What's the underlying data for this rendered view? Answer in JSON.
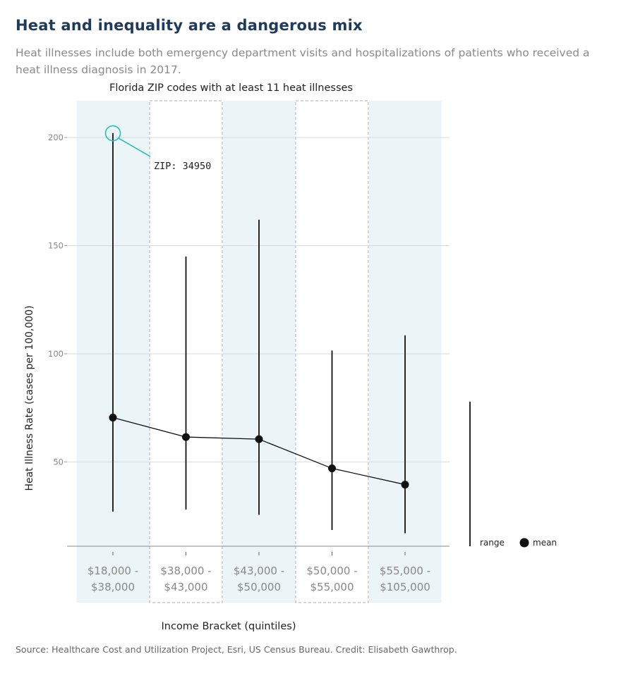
{
  "header": {
    "title": "Heat and inequality are a dangerous mix",
    "subtitle": "Heat illnesses include both emergency department visits and hospitalizations of patients who received a heat illness diagnosis in 2017."
  },
  "footer": {
    "source": "Source: Healthcare Cost and Utilization Project, Esri, US Census Bureau. Credit: Elisabeth Gawthrop."
  },
  "chart_data": {
    "type": "line",
    "title": "Florida ZIP codes with at least 11 heat illnesses",
    "xlabel": "Income Bracket (quintiles)",
    "ylabel": "Heat Illness Rate (cases per 100,000)",
    "ylim": [
      11,
      217
    ],
    "yticks": [
      200,
      150,
      100,
      50
    ],
    "grid": true,
    "categories": [
      [
        "$18,000 -",
        "$38,000"
      ],
      [
        "$38,000 -",
        "$43,000"
      ],
      [
        "$43,000 -",
        "$50,000"
      ],
      [
        "$50,000 -",
        "$55,000"
      ],
      [
        "$55,000 -",
        "$105,000"
      ]
    ],
    "series": [
      {
        "name": "mean",
        "values": [
          70.5,
          61.5,
          60.5,
          47,
          39.5
        ]
      },
      {
        "name": "range",
        "min": [
          27,
          28,
          25.5,
          18.5,
          17
        ],
        "max": [
          202,
          145,
          162,
          101.5,
          108.5
        ]
      }
    ],
    "annotation": {
      "text": "ZIP: 34950",
      "category_index": 0,
      "value": 202
    },
    "legend": {
      "position": "right",
      "items": [
        "range",
        "mean"
      ]
    },
    "colors": {
      "band": "#ebf4f6",
      "line": "#111111",
      "highlight": "#2bbbbb",
      "grid": "#d9d9d9"
    }
  }
}
